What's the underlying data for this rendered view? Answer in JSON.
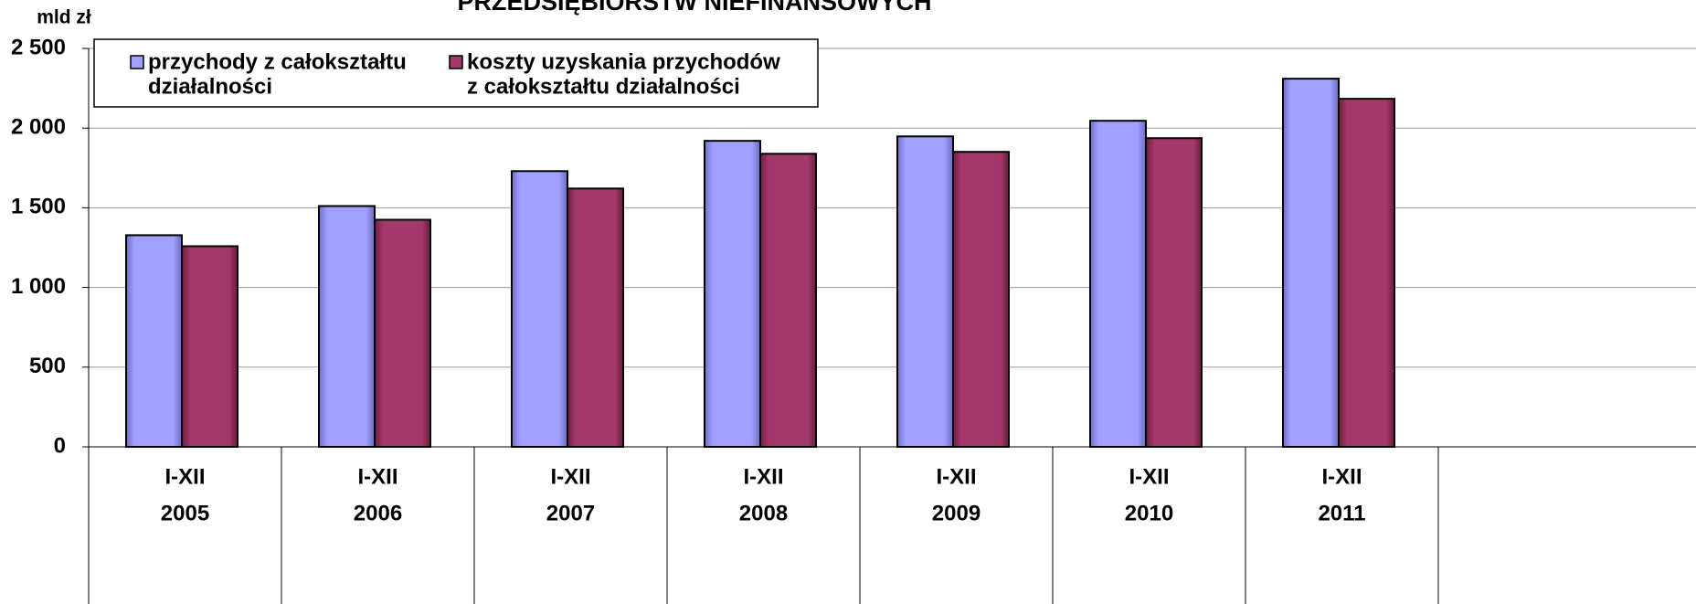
{
  "chart_data": {
    "type": "bar",
    "title": "PRZEDSIĘBIORSTW NIEFINANSOWYCH",
    "y_label": "mld zł",
    "categories": [
      [
        "I-XII",
        "2005"
      ],
      [
        "I-XII",
        "2006"
      ],
      [
        "I-XII",
        "2007"
      ],
      [
        "I-XII",
        "2008"
      ],
      [
        "I-XII",
        "2009"
      ],
      [
        "I-XII",
        "2010"
      ],
      [
        "I-XII",
        "2011"
      ]
    ],
    "series": [
      {
        "name": [
          "przychody z całokształtu",
          "działalności"
        ],
        "color": "#a0a0ff",
        "values": [
          1328,
          1511,
          1730,
          1920,
          1948,
          2046,
          2310
        ]
      },
      {
        "name": [
          "koszty uzyskania przychodów",
          "z całokształtu działalności"
        ],
        "color": "#a3386a",
        "values": [
          1259,
          1425,
          1621,
          1839,
          1851,
          1937,
          2184
        ]
      }
    ],
    "ylim": [
      0,
      2500
    ],
    "yticks": [
      0,
      500,
      {
        "value": 1000,
        "label": "1 000"
      },
      {
        "value": 1500,
        "label": "1 500"
      },
      {
        "value": 2000,
        "label": "2 000"
      },
      {
        "value": 2500,
        "label": "2 500"
      }
    ],
    "grid": true,
    "legend": "top-left"
  }
}
